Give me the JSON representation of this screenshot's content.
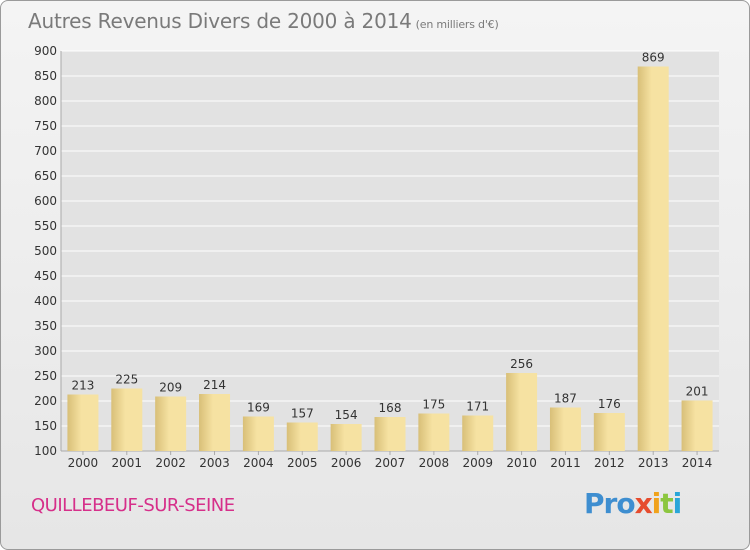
{
  "header": {
    "title": "Autres Revenus Divers de 2000 à 2014",
    "unit": "(en milliers d'€)"
  },
  "footer": {
    "commune": "QUILLEBEUF-SUR-SEINE",
    "logo": [
      "Pro",
      "x",
      "i",
      "t",
      "i"
    ]
  },
  "colors": {
    "bar_light": "#f6e2a2",
    "bar_dark": "#d8bf78",
    "commune": "#d62f8a",
    "grid": "#ffffff"
  },
  "chart_data": {
    "type": "bar",
    "title": "Autres Revenus Divers de 2000 à 2014",
    "categories": [
      "2000",
      "2001",
      "2002",
      "2003",
      "2004",
      "2005",
      "2006",
      "2007",
      "2008",
      "2009",
      "2010",
      "2011",
      "2012",
      "2013",
      "2014"
    ],
    "values": [
      213,
      225,
      209,
      214,
      169,
      157,
      154,
      168,
      175,
      171,
      256,
      187,
      176,
      869,
      201
    ],
    "ylim": [
      100,
      900
    ],
    "yticks": [
      100,
      150,
      200,
      250,
      300,
      350,
      400,
      450,
      500,
      550,
      600,
      650,
      700,
      750,
      800,
      850,
      900
    ],
    "grid": true
  }
}
